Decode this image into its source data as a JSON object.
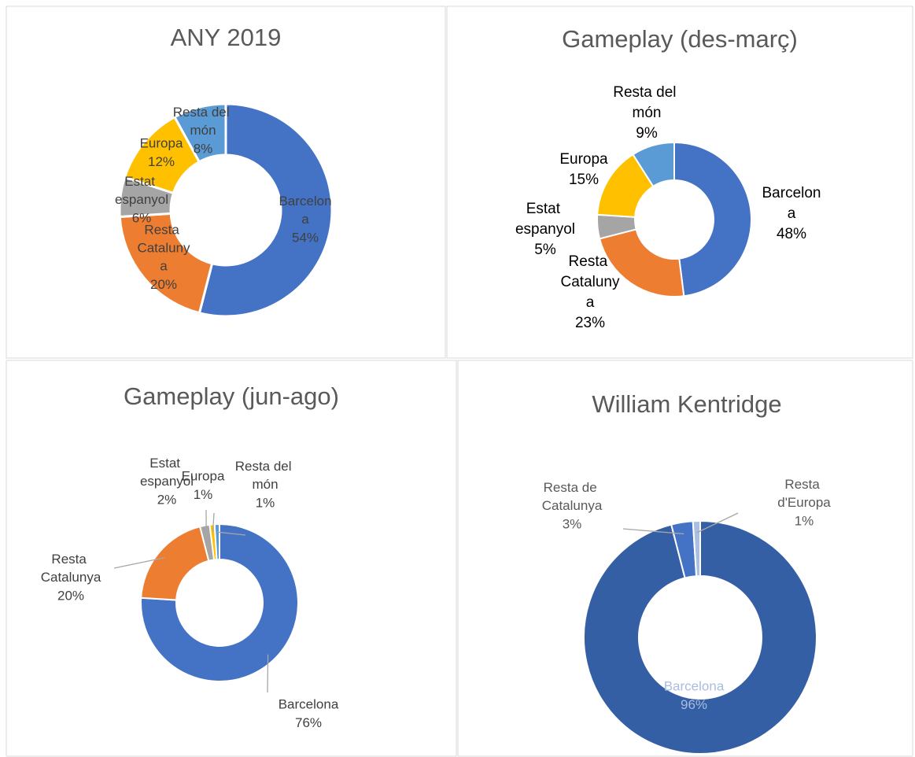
{
  "chart_data": [
    {
      "type": "pie",
      "title": "ANY 2019",
      "categories": [
        "Barcelona",
        "Resta Catalunya",
        "Estat espanyol",
        "Europa",
        "Resta del món"
      ],
      "values": [
        54,
        20,
        6,
        12,
        8
      ],
      "value_labels": [
        "54%",
        "20%",
        "6%",
        "12%",
        "8%"
      ],
      "colors": [
        "#4472c4",
        "#ed7d31",
        "#a5a5a5",
        "#ffc000",
        "#5b9bd5"
      ]
    },
    {
      "type": "pie",
      "title": "Gameplay (des-març)",
      "categories": [
        "Barcelona",
        "Resta Catalunya",
        "Estat espanyol",
        "Europa",
        "Resta del món"
      ],
      "values": [
        48,
        23,
        5,
        15,
        9
      ],
      "value_labels": [
        "48%",
        "23%",
        "5%",
        "15%",
        "9%"
      ],
      "colors": [
        "#4472c4",
        "#ed7d31",
        "#a5a5a5",
        "#ffc000",
        "#5b9bd5"
      ]
    },
    {
      "type": "pie",
      "title": "Gameplay (jun-ago)",
      "categories": [
        "Barcelona",
        "Resta Catalunya",
        "Estat espanyol",
        "Europa",
        "Resta del món"
      ],
      "values": [
        76,
        20,
        2,
        1,
        1
      ],
      "value_labels": [
        "76%",
        "20%",
        "2%",
        "1%",
        "1%"
      ],
      "colors": [
        "#4472c4",
        "#ed7d31",
        "#a5a5a5",
        "#ffc000",
        "#5b9bd5"
      ]
    },
    {
      "type": "pie",
      "title": "William Kentridge",
      "categories": [
        "Barcelona",
        "Resta de Catalunya",
        "Resta d'Europa"
      ],
      "values": [
        96,
        3,
        1
      ],
      "value_labels": [
        "96%",
        "3%",
        "1%"
      ],
      "colors": [
        "#355fa5",
        "#4472c4",
        "#a9bfe4"
      ]
    }
  ]
}
